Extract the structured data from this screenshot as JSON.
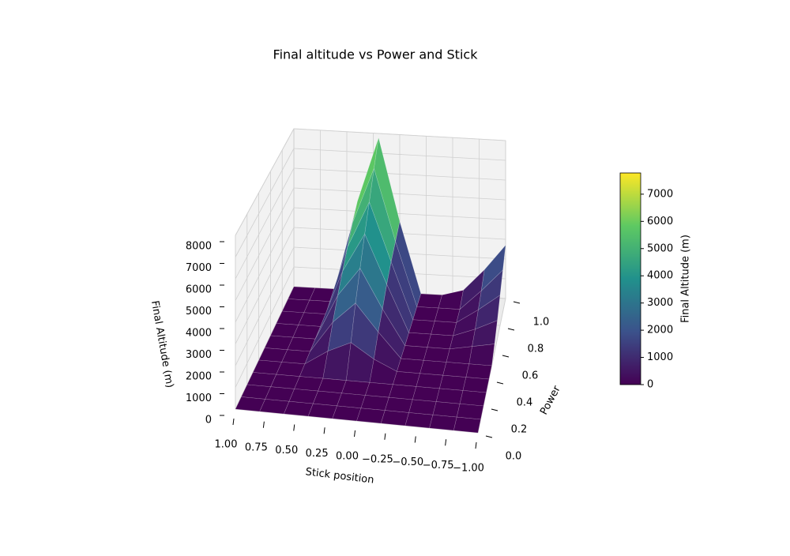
{
  "chart_data": {
    "type": "surface",
    "title": "Final altitude vs Power and Stick",
    "xlabel": "Stick position",
    "ylabel": "Power",
    "zlabel": "Final Altitude (m)",
    "x": [
      -1,
      -0.8,
      -0.6,
      -0.4,
      -0.2,
      0,
      0.2,
      0.4,
      0.6,
      0.8,
      1
    ],
    "y": [
      0,
      0.1,
      0.2,
      0.3,
      0.4,
      0.5,
      0.6,
      0.7,
      0.8,
      0.9,
      1
    ],
    "z": [
      [
        0,
        0,
        0,
        0,
        0,
        0,
        0,
        0,
        0,
        0,
        0
      ],
      [
        0,
        0,
        0,
        0,
        0,
        0,
        0,
        0,
        0,
        0,
        0
      ],
      [
        0,
        0,
        0,
        0,
        0,
        0,
        0,
        0,
        0,
        0,
        0
      ],
      [
        0,
        0,
        0,
        0,
        0,
        0,
        0,
        0,
        0,
        0,
        0
      ],
      [
        0,
        0,
        0,
        0,
        0,
        500,
        1200,
        700,
        0,
        0,
        0
      ],
      [
        0,
        0,
        0,
        0,
        0,
        1200,
        2500,
        1500,
        0,
        0,
        0
      ],
      [
        400,
        200,
        0,
        0,
        0,
        1700,
        3600,
        2200,
        0,
        0,
        0
      ],
      [
        900,
        400,
        0,
        0,
        0,
        2300,
        4700,
        2800,
        0,
        0,
        0
      ],
      [
        1500,
        700,
        0,
        0,
        0,
        2800,
        5700,
        3400,
        0,
        0,
        0
      ],
      [
        2100,
        1000,
        0,
        0,
        0,
        3200,
        6800,
        4000,
        0,
        0,
        0
      ],
      [
        2700,
        1400,
        300,
        0,
        0,
        3600,
        7780,
        4500,
        0,
        0,
        0
      ]
    ],
    "xlim": [
      -1,
      1
    ],
    "ylim": [
      0,
      1
    ],
    "zlim": [
      0,
      8000
    ],
    "xticks": [
      {
        "value": -1,
        "label": "−1.00"
      },
      {
        "value": -0.75,
        "label": "−0.75"
      },
      {
        "value": -0.5,
        "label": "−0.50"
      },
      {
        "value": -0.25,
        "label": "−0.25"
      },
      {
        "value": 0,
        "label": "0.00"
      },
      {
        "value": 0.25,
        "label": "0.25"
      },
      {
        "value": 0.5,
        "label": "0.50"
      },
      {
        "value": 0.75,
        "label": "0.75"
      },
      {
        "value": 1,
        "label": "1.00"
      }
    ],
    "yticks": [
      {
        "value": 0,
        "label": "0.0"
      },
      {
        "value": 0.2,
        "label": "0.2"
      },
      {
        "value": 0.4,
        "label": "0.4"
      },
      {
        "value": 0.6,
        "label": "0.6"
      },
      {
        "value": 0.8,
        "label": "0.8"
      },
      {
        "value": 1,
        "label": "1.0"
      }
    ],
    "zticks": [
      0,
      1000,
      2000,
      3000,
      4000,
      5000,
      6000,
      7000,
      8000
    ],
    "colormap": "viridis",
    "colorbar": {
      "label": "Final Altitude (m)",
      "lim": [
        0,
        7780
      ],
      "ticks": [
        0,
        1000,
        2000,
        3000,
        4000,
        5000,
        6000,
        7000
      ]
    }
  }
}
